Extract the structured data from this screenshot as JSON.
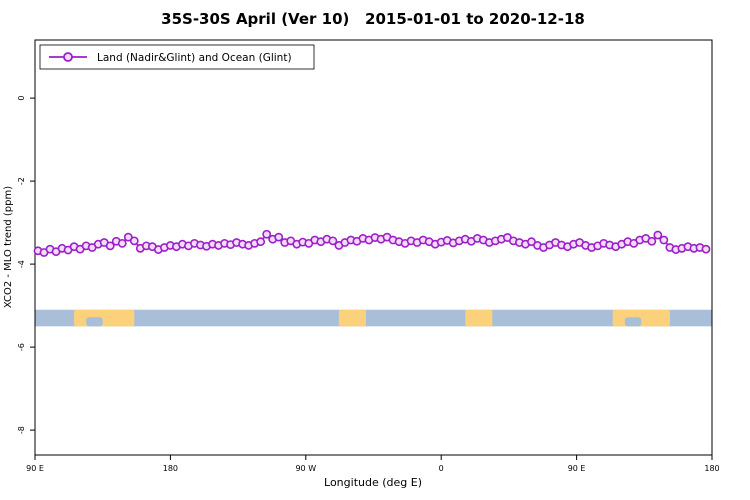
{
  "chart_data": {
    "type": "line",
    "title": "35S-30S April (Ver 10)   2015-01-01 to 2020-12-18",
    "xlabel": "Longitude (deg E)",
    "ylabel": "XCO2 - MLO trend (ppm)",
    "legend": [
      "Land (Nadir&Glint) and Ocean (Glint)"
    ],
    "legend_position": "top-left",
    "grid": false,
    "xlim": [
      90,
      540
    ],
    "ylim": [
      -8.6,
      1.4
    ],
    "xticks": {
      "values": [
        90,
        180,
        270,
        360,
        450,
        540
      ],
      "labels": [
        "90 E",
        "180",
        "90 W",
        "0",
        "90 E",
        "180"
      ]
    },
    "yticks": {
      "values": [
        0,
        -2,
        -4,
        -6,
        -8
      ],
      "labels": [
        "0",
        "-2",
        "-4",
        "-6",
        "-8"
      ]
    },
    "colors": {
      "line": "#9c1fc8",
      "marker_fill": "#f2ddf8",
      "background": "#ffffff",
      "axis": "#000000"
    },
    "series": [
      {
        "name": "Land (Nadir&Glint) and Ocean (Glint)",
        "color": "#9c1fc8",
        "marker": "open-circle",
        "x": [
          92,
          96,
          100,
          104,
          108,
          112,
          116,
          120,
          124,
          128,
          132,
          136,
          140,
          144,
          148,
          152,
          156,
          160,
          164,
          168,
          172,
          176,
          180,
          184,
          188,
          192,
          196,
          200,
          204,
          208,
          212,
          216,
          220,
          224,
          228,
          232,
          236,
          240,
          244,
          248,
          252,
          256,
          260,
          264,
          268,
          272,
          276,
          280,
          284,
          288,
          292,
          296,
          300,
          304,
          308,
          312,
          316,
          320,
          324,
          328,
          332,
          336,
          340,
          344,
          348,
          352,
          356,
          360,
          364,
          368,
          372,
          376,
          380,
          384,
          388,
          392,
          396,
          400,
          404,
          408,
          412,
          416,
          420,
          424,
          428,
          432,
          436,
          440,
          444,
          448,
          452,
          456,
          460,
          464,
          468,
          472,
          476,
          480,
          484,
          488,
          492,
          496,
          500,
          504,
          508,
          512,
          516,
          520,
          524,
          528,
          532,
          536
        ],
        "y": [
          -3.68,
          -3.72,
          -3.64,
          -3.7,
          -3.62,
          -3.66,
          -3.58,
          -3.64,
          -3.56,
          -3.6,
          -3.52,
          -3.48,
          -3.56,
          -3.45,
          -3.5,
          -3.35,
          -3.44,
          -3.62,
          -3.56,
          -3.58,
          -3.65,
          -3.6,
          -3.55,
          -3.58,
          -3.52,
          -3.56,
          -3.5,
          -3.54,
          -3.57,
          -3.52,
          -3.55,
          -3.5,
          -3.53,
          -3.48,
          -3.52,
          -3.55,
          -3.5,
          -3.46,
          -3.28,
          -3.4,
          -3.35,
          -3.48,
          -3.44,
          -3.52,
          -3.47,
          -3.5,
          -3.42,
          -3.46,
          -3.4,
          -3.44,
          -3.55,
          -3.48,
          -3.42,
          -3.45,
          -3.38,
          -3.42,
          -3.36,
          -3.4,
          -3.35,
          -3.42,
          -3.46,
          -3.5,
          -3.44,
          -3.48,
          -3.42,
          -3.46,
          -3.52,
          -3.47,
          -3.43,
          -3.49,
          -3.44,
          -3.4,
          -3.45,
          -3.38,
          -3.42,
          -3.48,
          -3.44,
          -3.4,
          -3.36,
          -3.44,
          -3.48,
          -3.52,
          -3.46,
          -3.55,
          -3.6,
          -3.54,
          -3.48,
          -3.54,
          -3.58,
          -3.52,
          -3.48,
          -3.55,
          -3.6,
          -3.56,
          -3.5,
          -3.54,
          -3.58,
          -3.52,
          -3.46,
          -3.5,
          -3.42,
          -3.38,
          -3.45,
          -3.3,
          -3.42,
          -3.6,
          -3.65,
          -3.62,
          -3.58,
          -3.62,
          -3.6,
          -3.64
        ]
      }
    ],
    "map_band": {
      "description": "coastline strip for latitude band 35S-30S",
      "y_top": -5.1,
      "y_bottom": -5.5,
      "ocean_color": "#a9bed9",
      "land_color": "#fcd17b",
      "land_segments_deg": [
        [
          116,
          156
        ],
        [
          292,
          310
        ],
        [
          376,
          394
        ],
        [
          474,
          512
        ]
      ],
      "ocean_notches_deg": [
        [
          124,
          135
        ],
        [
          482,
          493
        ]
      ]
    }
  }
}
